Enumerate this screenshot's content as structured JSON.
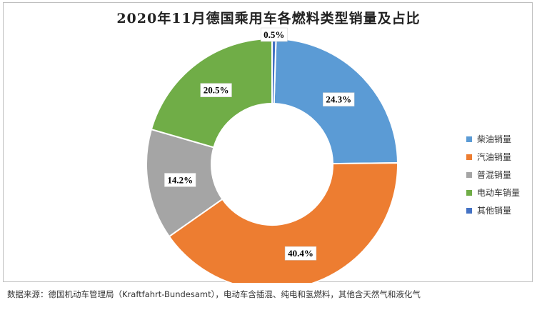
{
  "title": "2020年11月德国乘用车各燃料类型销量及占比",
  "source_note": "数据来源：德国机动车管理局（Kraftfahrt-Bundesamt），电动车含插混、纯电和氢燃料，其他含天然气和液化气",
  "chart_data": {
    "type": "pie",
    "donut": true,
    "title": "2020年11月德国乘用车各燃料类型销量及占比",
    "legend_position": "right",
    "slices": [
      {
        "label": "柴油销量",
        "value": 24.3,
        "value_label": "24.3%",
        "color": "#5b9bd5"
      },
      {
        "label": "汽油销量",
        "value": 40.4,
        "value_label": "40.4%",
        "color": "#ed7d31"
      },
      {
        "label": "普混销量",
        "value": 14.2,
        "value_label": "14.2%",
        "color": "#a5a5a5"
      },
      {
        "label": "电动车销量",
        "value": 20.5,
        "value_label": "20.5%",
        "color": "#70ad47"
      },
      {
        "label": "其他销量",
        "value": 0.5,
        "value_label": "0.5%",
        "color": "#4472c4"
      }
    ]
  }
}
